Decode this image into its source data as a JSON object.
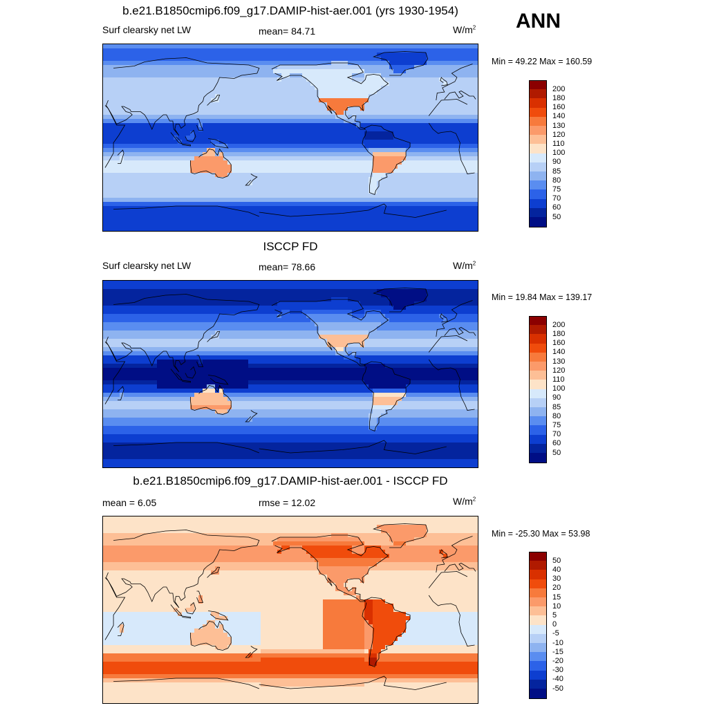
{
  "season": "ANN",
  "panels": [
    {
      "title": "b.e21.B1850cmip6.f09_g17.DAMIP-hist-aer.001 (yrs 1930-1954)",
      "left_label": "Surf clearsky net LW",
      "center_label": "mean=  84.71",
      "units": "W/m",
      "units_sup": "2",
      "minmax": "Min =  49.22 Max = 160.59",
      "colorbar": {
        "labels": [
          "200",
          "180",
          "160",
          "140",
          "130",
          "120",
          "110",
          "100",
          "90",
          "85",
          "80",
          "75",
          "70",
          "60",
          "50"
        ],
        "colors": [
          "#8b0000",
          "#b01a00",
          "#d93000",
          "#f04c0c",
          "#f77a3c",
          "#fb9a6a",
          "#fdbf96",
          "#fde3c8",
          "#d7e9fb",
          "#b7d0f6",
          "#8eb3f0",
          "#5a8df0",
          "#2c62e8",
          "#0d3ed0",
          "#04249e",
          "#000e85"
        ]
      },
      "data_field": "model"
    },
    {
      "title": "ISCCP FD",
      "left_label": "Surf clearsky net LW",
      "center_label": "mean=  78.66",
      "units": "W/m",
      "units_sup": "2",
      "minmax": "Min =  19.84 Max = 139.17",
      "colorbar": {
        "labels": [
          "200",
          "180",
          "160",
          "140",
          "130",
          "120",
          "110",
          "100",
          "90",
          "85",
          "80",
          "75",
          "70",
          "60",
          "50"
        ],
        "colors": [
          "#8b0000",
          "#b01a00",
          "#d93000",
          "#f04c0c",
          "#f77a3c",
          "#fb9a6a",
          "#fdbf96",
          "#fde3c8",
          "#d7e9fb",
          "#b7d0f6",
          "#8eb3f0",
          "#5a8df0",
          "#2c62e8",
          "#0d3ed0",
          "#04249e",
          "#000e85"
        ]
      },
      "data_field": "obs"
    },
    {
      "title": "b.e21.B1850cmip6.f09_g17.DAMIP-hist-aer.001 - ISCCP FD",
      "left_label": "mean =   6.05",
      "center_label": "rmse =  12.02",
      "units": "W/m",
      "units_sup": "2",
      "minmax": "Min = -25.30 Max =  53.98",
      "colorbar": {
        "labels": [
          "50",
          "40",
          "30",
          "20",
          "15",
          "10",
          "5",
          "0",
          "-5",
          "-10",
          "-15",
          "-20",
          "-30",
          "-40",
          "-50"
        ],
        "colors": [
          "#8b0000",
          "#b01a00",
          "#d93000",
          "#f04c0c",
          "#f77a3c",
          "#fb9a6a",
          "#fdbf96",
          "#fde3c8",
          "#d7e9fb",
          "#b7d0f6",
          "#8eb3f0",
          "#5a8df0",
          "#2c62e8",
          "#0d3ed0",
          "#04249e",
          "#000e85"
        ]
      },
      "data_field": "diff"
    }
  ]
}
